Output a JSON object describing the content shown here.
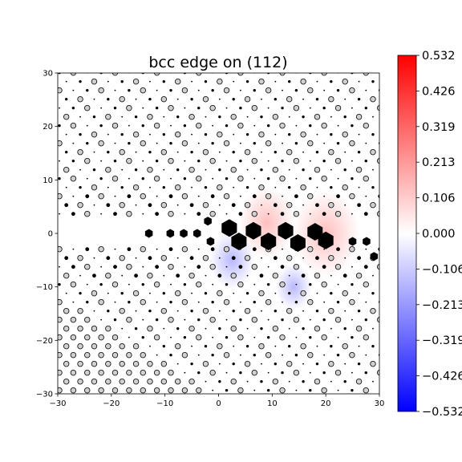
{
  "chart_data": {
    "type": "scatter",
    "title": "bcc edge on (112)",
    "xlabel": "",
    "ylabel": "",
    "xlim": [
      -30,
      30
    ],
    "ylim": [
      -30,
      30
    ],
    "x_ticks": [
      -30,
      -20,
      -10,
      0,
      10,
      20,
      30
    ],
    "y_ticks": [
      -30,
      -20,
      -10,
      0,
      10,
      20,
      30
    ],
    "grid": false,
    "colorbar": {
      "colormap": "bwr",
      "min": -0.532,
      "max": 0.532,
      "ticks": [
        "0.532",
        "0.426",
        "0.319",
        "0.213",
        "0.106",
        "0.000",
        "-0.106",
        "-0.213",
        "-0.319",
        "-0.426",
        "-0.532"
      ]
    },
    "lattice": {
      "x_spacing": 2.6,
      "y_spacing": 1.65,
      "row_offset": 1.3,
      "layers": [
        "open",
        "small",
        "medium"
      ],
      "core_y": 0
    },
    "core_atoms": [
      {
        "x": -13,
        "y": 0
      },
      {
        "x": -9,
        "y": 0
      },
      {
        "x": -6.5,
        "y": 0
      },
      {
        "x": -4,
        "y": 0
      },
      {
        "x": -2,
        "y": 2.3
      },
      {
        "x": -1.5,
        "y": -1.5
      },
      {
        "x": 2,
        "y": 1
      },
      {
        "x": 3.8,
        "y": -1.5
      },
      {
        "x": 6.5,
        "y": 0.5
      },
      {
        "x": 9.3,
        "y": -1.5
      },
      {
        "x": 12.5,
        "y": 0.5
      },
      {
        "x": 14.8,
        "y": -1.8
      },
      {
        "x": 18,
        "y": 0.3
      },
      {
        "x": 20,
        "y": -1.3
      },
      {
        "x": 25,
        "y": -1.5
      },
      {
        "x": 27.6,
        "y": -1.5
      },
      {
        "x": 29,
        "y": -4.3
      }
    ],
    "stress_blobs": [
      {
        "x": 2.5,
        "y": -5,
        "value": -0.2
      },
      {
        "x": 14,
        "y": -10,
        "value": -0.16
      },
      {
        "x": 9,
        "y": 2,
        "value": 0.25
      },
      {
        "x": 20,
        "y": 0,
        "value": 0.3
      }
    ]
  }
}
